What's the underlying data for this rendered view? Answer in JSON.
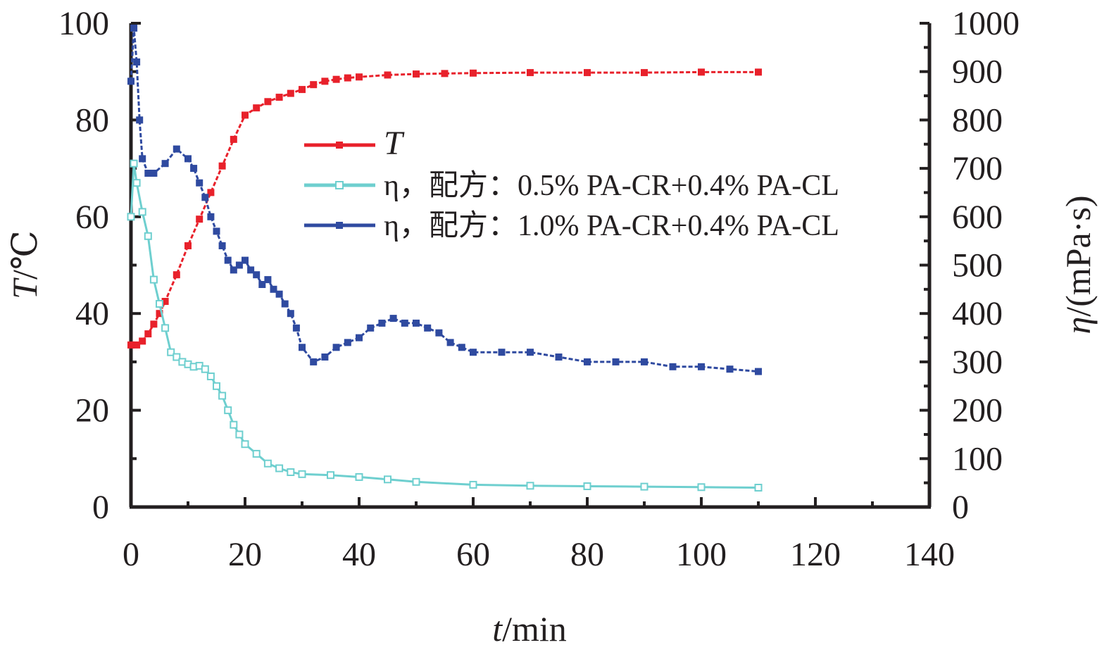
{
  "chart_data": {
    "type": "line",
    "xlabel": {
      "var": "t",
      "unit": "/min"
    },
    "ylabel_left": {
      "var": "T",
      "unit": "/℃"
    },
    "ylabel_right": {
      "var": "η",
      "unit": "/(mPa·s)"
    },
    "xlim": [
      0,
      140
    ],
    "ylim_left": [
      0,
      100
    ],
    "ylim_right": [
      0,
      1000
    ],
    "x_ticks": [
      "0",
      "20",
      "40",
      "60",
      "80",
      "100",
      "120",
      "140"
    ],
    "y_left_ticks": [
      "0",
      "20",
      "40",
      "60",
      "80",
      "100"
    ],
    "y_right_ticks": [
      "0",
      "100",
      "200",
      "300",
      "400",
      "500",
      "600",
      "700",
      "800",
      "900",
      "1000"
    ],
    "grid": false,
    "legend_position": "top-center",
    "series": [
      {
        "name": "T",
        "legend_label": "T",
        "axis": "left",
        "color": "#e8212b",
        "marker": "filled-square",
        "x": [
          0,
          1,
          2,
          3,
          4,
          5,
          6,
          8,
          10,
          12,
          14,
          16,
          18,
          20,
          22,
          24,
          26,
          28,
          30,
          32,
          34,
          36,
          38,
          40,
          45,
          50,
          55,
          60,
          70,
          80,
          90,
          100,
          110
        ],
        "y": [
          33.5,
          33.5,
          34.3,
          35.8,
          37.8,
          40.0,
          42.5,
          48.0,
          54.0,
          59.5,
          65.0,
          70.5,
          76.0,
          81.0,
          82.5,
          83.8,
          84.7,
          85.5,
          86.3,
          87.3,
          88.0,
          88.4,
          88.7,
          88.9,
          89.3,
          89.5,
          89.6,
          89.7,
          89.8,
          89.8,
          89.8,
          89.9,
          89.9
        ]
      },
      {
        "name": "η1",
        "legend_label": "η，配方：0.5% PA-CR+0.4% PA-CL",
        "axis": "right",
        "color": "#6ecfcf",
        "marker": "open-square",
        "x": [
          0,
          0.5,
          1,
          2,
          3,
          4,
          5,
          6,
          7,
          8,
          9,
          10,
          11,
          12,
          13,
          14,
          15,
          16,
          17,
          18,
          19,
          20,
          22,
          24,
          26,
          28,
          30,
          35,
          40,
          45,
          50,
          60,
          70,
          80,
          90,
          100,
          110
        ],
        "y": [
          600,
          710,
          670,
          610,
          560,
          470,
          420,
          370,
          320,
          310,
          300,
          295,
          290,
          292,
          285,
          270,
          250,
          230,
          200,
          170,
          150,
          130,
          110,
          90,
          80,
          72,
          68,
          66,
          62,
          57,
          52,
          46,
          44,
          43,
          42,
          41,
          40
        ]
      },
      {
        "name": "η2",
        "legend_label": "η，配方：1.0% PA-CR+0.4% PA-CL",
        "axis": "right",
        "color": "#2f4aa0",
        "marker": "filled-square",
        "x": [
          0,
          0.5,
          1,
          1.5,
          2,
          3,
          4,
          6,
          8,
          10,
          11,
          12,
          13,
          14,
          15,
          16,
          17,
          18,
          19,
          20,
          21,
          22,
          23,
          24,
          25,
          26,
          27,
          28,
          29,
          30,
          32,
          34,
          36,
          38,
          40,
          42,
          44,
          46,
          48,
          50,
          52,
          54,
          56,
          58,
          60,
          65,
          70,
          75,
          80,
          85,
          90,
          95,
          100,
          105,
          110
        ],
        "y": [
          880,
          990,
          920,
          800,
          720,
          690,
          690,
          710,
          740,
          720,
          700,
          670,
          640,
          600,
          570,
          540,
          510,
          490,
          500,
          510,
          490,
          480,
          460,
          470,
          450,
          440,
          420,
          400,
          370,
          330,
          300,
          310,
          330,
          340,
          350,
          370,
          380,
          390,
          380,
          380,
          370,
          360,
          340,
          330,
          320,
          320,
          320,
          310,
          300,
          300,
          300,
          290,
          290,
          285,
          280
        ]
      }
    ]
  }
}
